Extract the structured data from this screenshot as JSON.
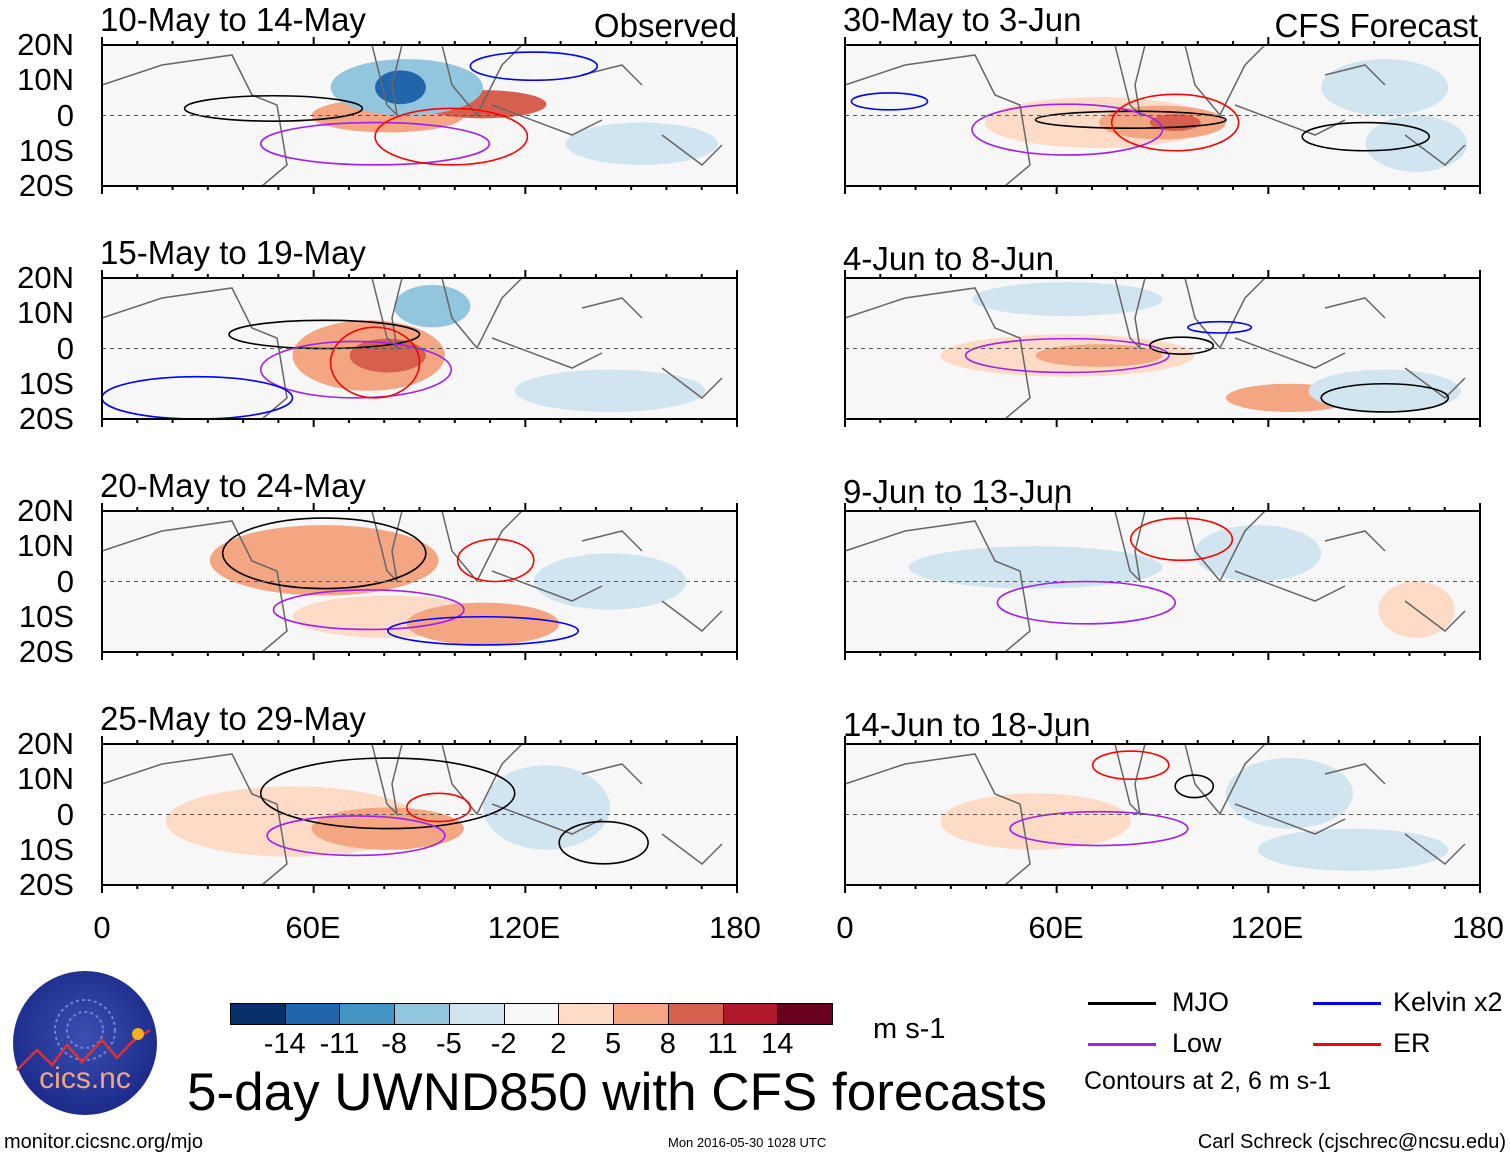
{
  "panels": [
    {
      "title": "10-May to 14-May",
      "label": "Observed"
    },
    {
      "title": "30-May to 3-Jun",
      "label": "CFS Forecast"
    },
    {
      "title": "15-May to 19-May"
    },
    {
      "title": "4-Jun to 8-Jun"
    },
    {
      "title": "20-May to 24-May"
    },
    {
      "title": "9-Jun to 13-Jun"
    },
    {
      "title": "25-May to 29-May"
    },
    {
      "title": "14-Jun to 18-Jun"
    }
  ],
  "lat_labels": [
    "20N",
    "10N",
    "0",
    "10S",
    "20S"
  ],
  "lon_labels": [
    "0",
    "60E",
    "120E",
    "180"
  ],
  "colorbar": {
    "colors": [
      "#08306b",
      "#2166ac",
      "#4393c3",
      "#92c5de",
      "#d1e5f0",
      "#f7f7f7",
      "#fddbc7",
      "#f4a582",
      "#d6604d",
      "#b2182b",
      "#67001f"
    ],
    "labels": [
      "-14",
      "-11",
      "-8",
      "-5",
      "-2",
      "2",
      "5",
      "8",
      "11",
      "14"
    ],
    "units": "m s-1"
  },
  "legend": {
    "items": [
      {
        "label": "MJO",
        "color": "#000000"
      },
      {
        "label": "Kelvin x2",
        "color": "#0000ff"
      },
      {
        "label": "Low",
        "color": "#a020f0"
      },
      {
        "label": "ER",
        "color": "#ff0000"
      }
    ],
    "note": "Contours at 2, 6 m s-1"
  },
  "title": "5-day UWND850 with CFS forecasts",
  "logo_text": "cics.nc",
  "logo_ring_text": "Cooperative Institute for Climate and Satellites",
  "footer": {
    "url": "monitor.cicsnc.org/mjo",
    "timestamp": "Mon 2016-05-30 1028 UTC",
    "author": "Carl Schreck (cjschrec@ncsu.edu)"
  }
}
